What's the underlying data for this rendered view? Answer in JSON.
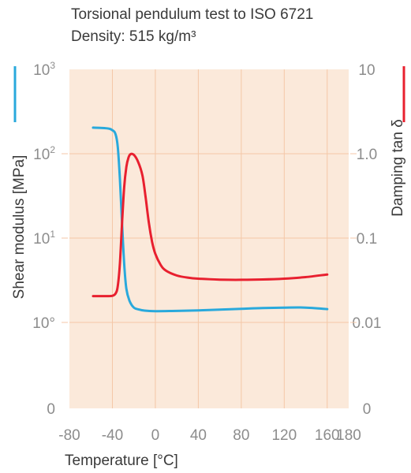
{
  "chart_data": {
    "type": "line",
    "title": "Torsional pendulum test to ISO 6721",
    "subtitle": "Density: 515 kg/m³",
    "xlabel": "Temperature [°C]",
    "ylabel_left": "Shear modulus [MPa]",
    "ylabel_right": "Damping tan δ",
    "x_ticks": [
      "-80",
      "-40",
      "0",
      "40",
      "80",
      "120",
      "160",
      "180"
    ],
    "x_tick_values": [
      -80,
      -40,
      0,
      40,
      80,
      120,
      160,
      180
    ],
    "xlim": [
      -80,
      180
    ],
    "left_ticks": [
      {
        "label": "10",
        "sup": "3"
      },
      {
        "label": "10",
        "sup": "2"
      },
      {
        "label": "10",
        "sup": "1"
      },
      {
        "label": "10°",
        "sup": ""
      },
      {
        "label": "0",
        "sup": ""
      }
    ],
    "right_ticks": [
      "10",
      "1.0",
      "0.1",
      "0.01",
      "0"
    ],
    "grid": true,
    "colors": {
      "shear": "#29a9dc",
      "damping": "#e8202f",
      "plot_bg": "#fbe9da",
      "grid": "#f4c7a7"
    },
    "series": [
      {
        "name": "Shear modulus [MPa]",
        "axis": "left",
        "log_scale": true,
        "x": [
          -58,
          -45,
          -40,
          -37,
          -35,
          -33,
          -31,
          -29,
          -27,
          -24,
          -20,
          -15,
          -10,
          0,
          20,
          40,
          60,
          80,
          100,
          120,
          140,
          160
        ],
        "values": [
          204,
          200,
          190,
          170,
          120,
          50,
          15,
          5,
          2.5,
          1.8,
          1.5,
          1.42,
          1.38,
          1.36,
          1.37,
          1.39,
          1.42,
          1.45,
          1.48,
          1.5,
          1.5,
          1.44
        ]
      },
      {
        "name": "Damping tan δ",
        "axis": "right",
        "log_scale": true,
        "x": [
          -58,
          -45,
          -40,
          -37,
          -35,
          -33,
          -31,
          -29,
          -27,
          -25,
          -23,
          -20,
          -16,
          -12,
          -9,
          -6,
          -3,
          0,
          5,
          10,
          20,
          30,
          40,
          60,
          80,
          100,
          120,
          140,
          160
        ],
        "values": [
          0.0205,
          0.0205,
          0.0207,
          0.022,
          0.027,
          0.05,
          0.15,
          0.4,
          0.7,
          0.9,
          0.99,
          0.97,
          0.8,
          0.55,
          0.3,
          0.15,
          0.09,
          0.065,
          0.048,
          0.041,
          0.036,
          0.034,
          0.033,
          0.0322,
          0.032,
          0.0323,
          0.033,
          0.0345,
          0.037
        ]
      }
    ]
  }
}
